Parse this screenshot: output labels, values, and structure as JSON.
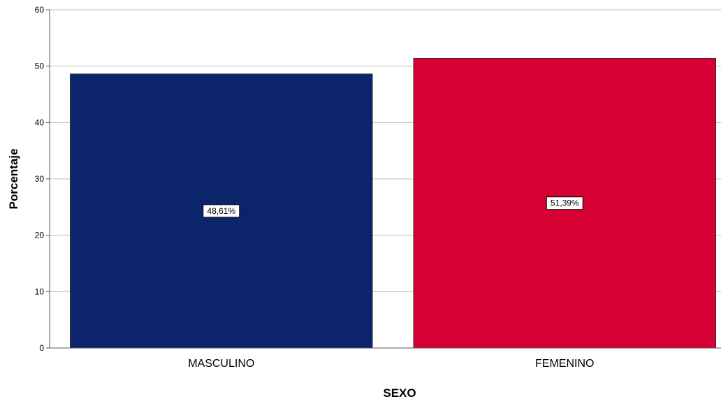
{
  "chart_data": {
    "type": "bar",
    "categories": [
      "MASCULINO",
      "FEMENINO"
    ],
    "values": [
      48.61,
      51.39
    ],
    "data_labels": [
      "48,61%",
      "51,39%"
    ],
    "colors": [
      "#0b246b",
      "#d60032"
    ],
    "title": "",
    "xlabel": "SEXO",
    "ylabel": "Porcentaje",
    "ylim": [
      0,
      60
    ],
    "yticks": [
      0,
      10,
      20,
      30,
      40,
      50,
      60
    ],
    "grid": true,
    "legend": "none"
  }
}
